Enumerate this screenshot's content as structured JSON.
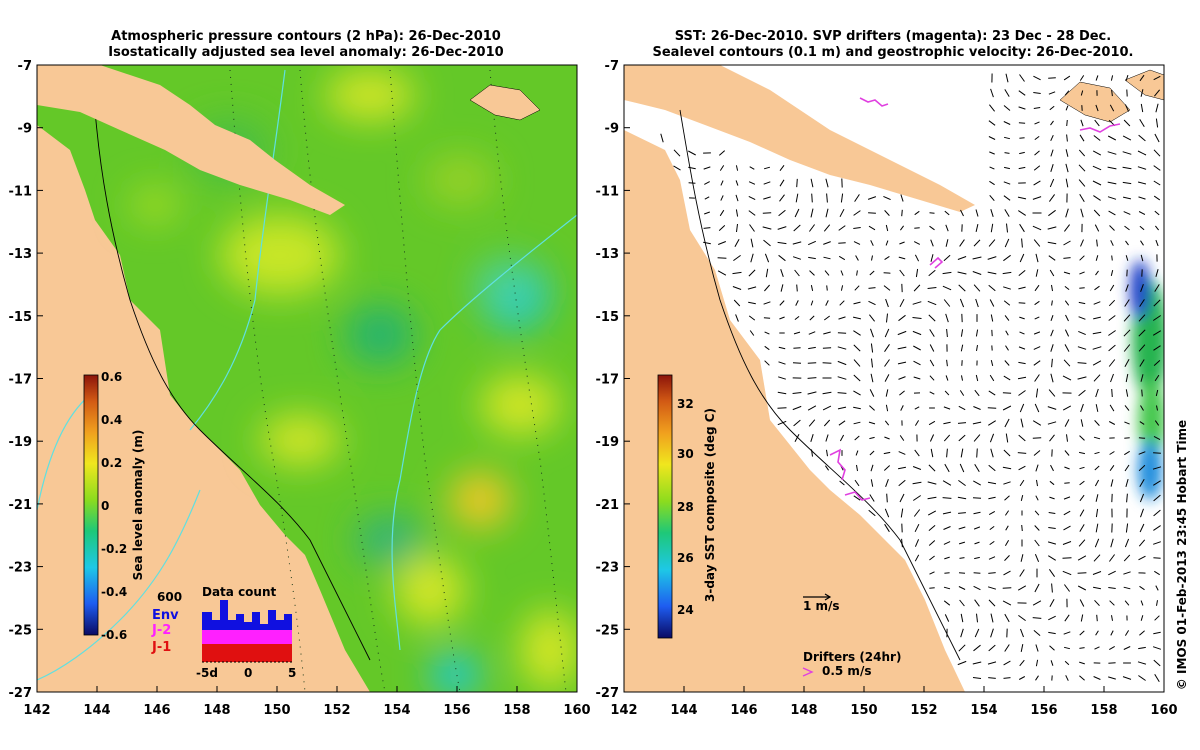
{
  "left_panel": {
    "title_line1": "Atmospheric pressure contours (2 hPa): 26-Dec-2010",
    "title_line2": "Isostatically adjusted sea level anomaly: 26-Dec-2010",
    "colorbar": {
      "label": "Sea level anomaly (m)",
      "ticks": [
        "0.6",
        "0.4",
        "0.2",
        "0",
        "-0.2",
        "-0.4",
        "-0.6"
      ],
      "colors": [
        "#0a0a64",
        "#1e5cf0",
        "#1ec8e6",
        "#1ec878",
        "#8cdc1e",
        "#f0e61e",
        "#f0a01e",
        "#d25a14",
        "#8c140a"
      ]
    },
    "data_count": {
      "title": "Data count",
      "max_label": "600",
      "legend": [
        {
          "label": "Env",
          "color": "#1010e0"
        },
        {
          "label": "J-2",
          "color": "#ff20ff"
        },
        {
          "label": "J-1",
          "color": "#e01010"
        }
      ],
      "x_ticks": [
        "-5d",
        "0",
        "5"
      ]
    }
  },
  "right_panel": {
    "title_line1": "SST: 26-Dec-2010. SVP drifters (magenta): 23 Dec - 28 Dec.",
    "title_line2": "Sealevel contours (0.1 m) and geostrophic velocity: 26-Dec-2010.",
    "colorbar": {
      "label": "3-day SST composite (deg C)",
      "ticks": [
        "32",
        "30",
        "28",
        "26",
        "24"
      ],
      "colors": [
        "#0a0a64",
        "#1e5cf0",
        "#1ec8e6",
        "#1ec878",
        "#8cdc1e",
        "#f0e61e",
        "#f0a01e",
        "#d25a14",
        "#8c140a"
      ]
    },
    "velocity_scale_label": "1 m/s",
    "drifters_label": "Drifters (24hr)",
    "drifter_speed_label": "0.5 m/s"
  },
  "axes": {
    "lon_ticks": [
      "142",
      "144",
      "146",
      "148",
      "150",
      "152",
      "154",
      "156",
      "158",
      "160"
    ],
    "lat_ticks": [
      "-7",
      "-9",
      "-11",
      "-13",
      "-15",
      "-17",
      "-19",
      "-21",
      "-23",
      "-25",
      "-27"
    ]
  },
  "credit": "© IMOS 01-Feb-2013 23:45 Hobart Time",
  "colors": {
    "land": "#f8c896",
    "ocean_base": "#64c828",
    "isobath": "#60e0e0",
    "drifter": "#e040e0"
  }
}
